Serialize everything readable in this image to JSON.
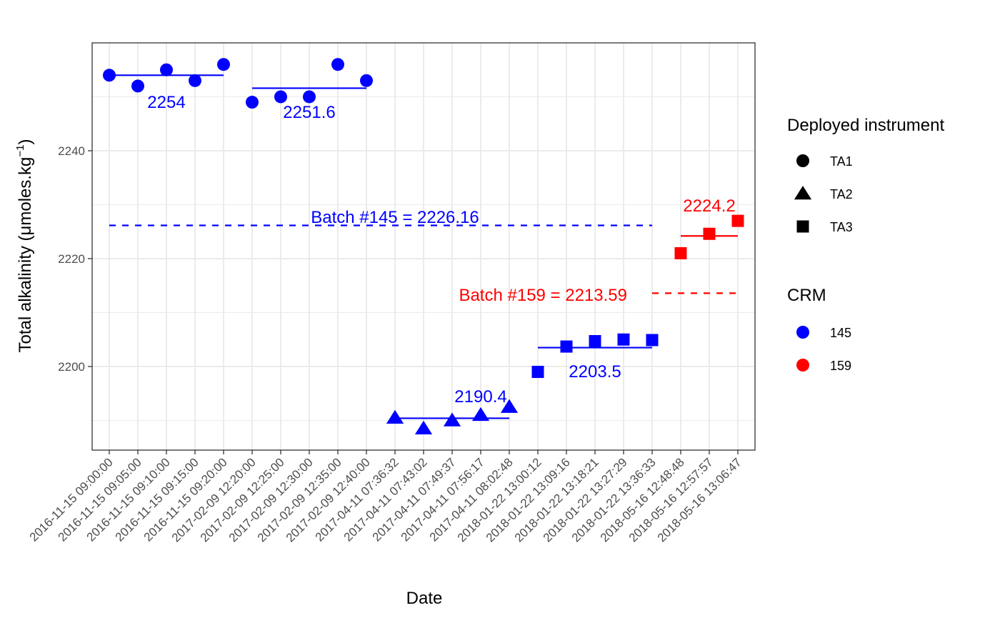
{
  "chart_data": {
    "type": "scatter",
    "title": "",
    "xlabel": "Date",
    "ylabel": "Total alkalinity (μmoles.kg",
    "ylabel_superscript": "−1",
    "ylabel_close": ")",
    "ylim": [
      2184.5,
      2260
    ],
    "yticks": [
      2200,
      2220,
      2240
    ],
    "grid": true,
    "categories": [
      "2016-11-15 09:00:00",
      "2016-11-15 09:05:00",
      "2016-11-15 09:10:00",
      "2016-11-15 09:15:00",
      "2016-11-15 09:20:00",
      "2017-02-09 12:20:00",
      "2017-02-09 12:25:00",
      "2017-02-09 12:30:00",
      "2017-02-09 12:35:00",
      "2017-02-09 12:40:00",
      "2017-04-11 07:36:32",
      "2017-04-11 07:43:02",
      "2017-04-11 07:49:37",
      "2017-04-11 07:56:17",
      "2017-04-11 08:02:48",
      "2018-01-22 13:00:12",
      "2018-01-22 13:09:16",
      "2018-01-22 13:18:21",
      "2018-01-22 13:27:29",
      "2018-01-22 13:36:33",
      "2018-05-16 12:48:48",
      "2018-05-16 12:57:57",
      "2018-05-16 13:06:47"
    ],
    "points": [
      {
        "x": 0,
        "y": 2254.0,
        "shape": "TA1",
        "crm": "145"
      },
      {
        "x": 1,
        "y": 2252.0,
        "shape": "TA1",
        "crm": "145"
      },
      {
        "x": 2,
        "y": 2255.0,
        "shape": "TA1",
        "crm": "145"
      },
      {
        "x": 3,
        "y": 2253.0,
        "shape": "TA1",
        "crm": "145"
      },
      {
        "x": 4,
        "y": 2256.0,
        "shape": "TA1",
        "crm": "145"
      },
      {
        "x": 5,
        "y": 2249.0,
        "shape": "TA1",
        "crm": "145"
      },
      {
        "x": 6,
        "y": 2250.0,
        "shape": "TA1",
        "crm": "145"
      },
      {
        "x": 7,
        "y": 2250.0,
        "shape": "TA1",
        "crm": "145"
      },
      {
        "x": 8,
        "y": 2256.0,
        "shape": "TA1",
        "crm": "145"
      },
      {
        "x": 9,
        "y": 2253.0,
        "shape": "TA1",
        "crm": "145"
      },
      {
        "x": 10,
        "y": 2190.5,
        "shape": "TA2",
        "crm": "145"
      },
      {
        "x": 11,
        "y": 2188.5,
        "shape": "TA2",
        "crm": "145"
      },
      {
        "x": 12,
        "y": 2190.0,
        "shape": "TA2",
        "crm": "145"
      },
      {
        "x": 13,
        "y": 2191.0,
        "shape": "TA2",
        "crm": "145"
      },
      {
        "x": 14,
        "y": 2192.5,
        "shape": "TA2",
        "crm": "145"
      },
      {
        "x": 15,
        "y": 2199.0,
        "shape": "TA3",
        "crm": "145"
      },
      {
        "x": 16,
        "y": 2203.7,
        "shape": "TA3",
        "crm": "145"
      },
      {
        "x": 17,
        "y": 2204.7,
        "shape": "TA3",
        "crm": "145"
      },
      {
        "x": 18,
        "y": 2205.0,
        "shape": "TA3",
        "crm": "145"
      },
      {
        "x": 19,
        "y": 2204.9,
        "shape": "TA3",
        "crm": "145"
      },
      {
        "x": 20,
        "y": 2221.0,
        "shape": "TA3",
        "crm": "159"
      },
      {
        "x": 21,
        "y": 2224.6,
        "shape": "TA3",
        "crm": "159"
      },
      {
        "x": 22,
        "y": 2227.0,
        "shape": "TA3",
        "crm": "159"
      }
    ],
    "group_means": [
      {
        "x_from": 0,
        "x_to": 4,
        "y": 2254.0,
        "label": "2254",
        "crm": "145"
      },
      {
        "x_from": 5,
        "x_to": 9,
        "y": 2251.6,
        "label": "2251.6",
        "crm": "145"
      },
      {
        "x_from": 10,
        "x_to": 14,
        "y": 2190.4,
        "label": "2190.4",
        "crm": "145"
      },
      {
        "x_from": 15,
        "x_to": 19,
        "y": 2203.5,
        "label": "2203.5",
        "crm": "145"
      },
      {
        "x_from": 20,
        "x_to": 22,
        "y": 2224.2,
        "label": "2224.2",
        "crm": "159"
      }
    ],
    "reference_lines": [
      {
        "x_from": 0,
        "x_to": 19,
        "y": 2226.16,
        "label": "Batch #145 = 2226.16",
        "crm": "145"
      },
      {
        "x_from": 19,
        "x_to": 22,
        "y": 2213.59,
        "label": "Batch #159 = 2213.59",
        "crm": "159"
      }
    ],
    "legend": {
      "shape_title": "Deployed instrument",
      "shapes": [
        "TA1",
        "TA2",
        "TA3"
      ],
      "color_title": "CRM",
      "colors": [
        {
          "label": "145",
          "color": "#0000ff"
        },
        {
          "label": "159",
          "color": "#ff0000"
        }
      ],
      "placement": "right"
    }
  },
  "colors": {
    "crm_145": "#0000ff",
    "crm_159": "#ff0000",
    "panel_border": "#333333",
    "grid": "#ebebeb"
  }
}
